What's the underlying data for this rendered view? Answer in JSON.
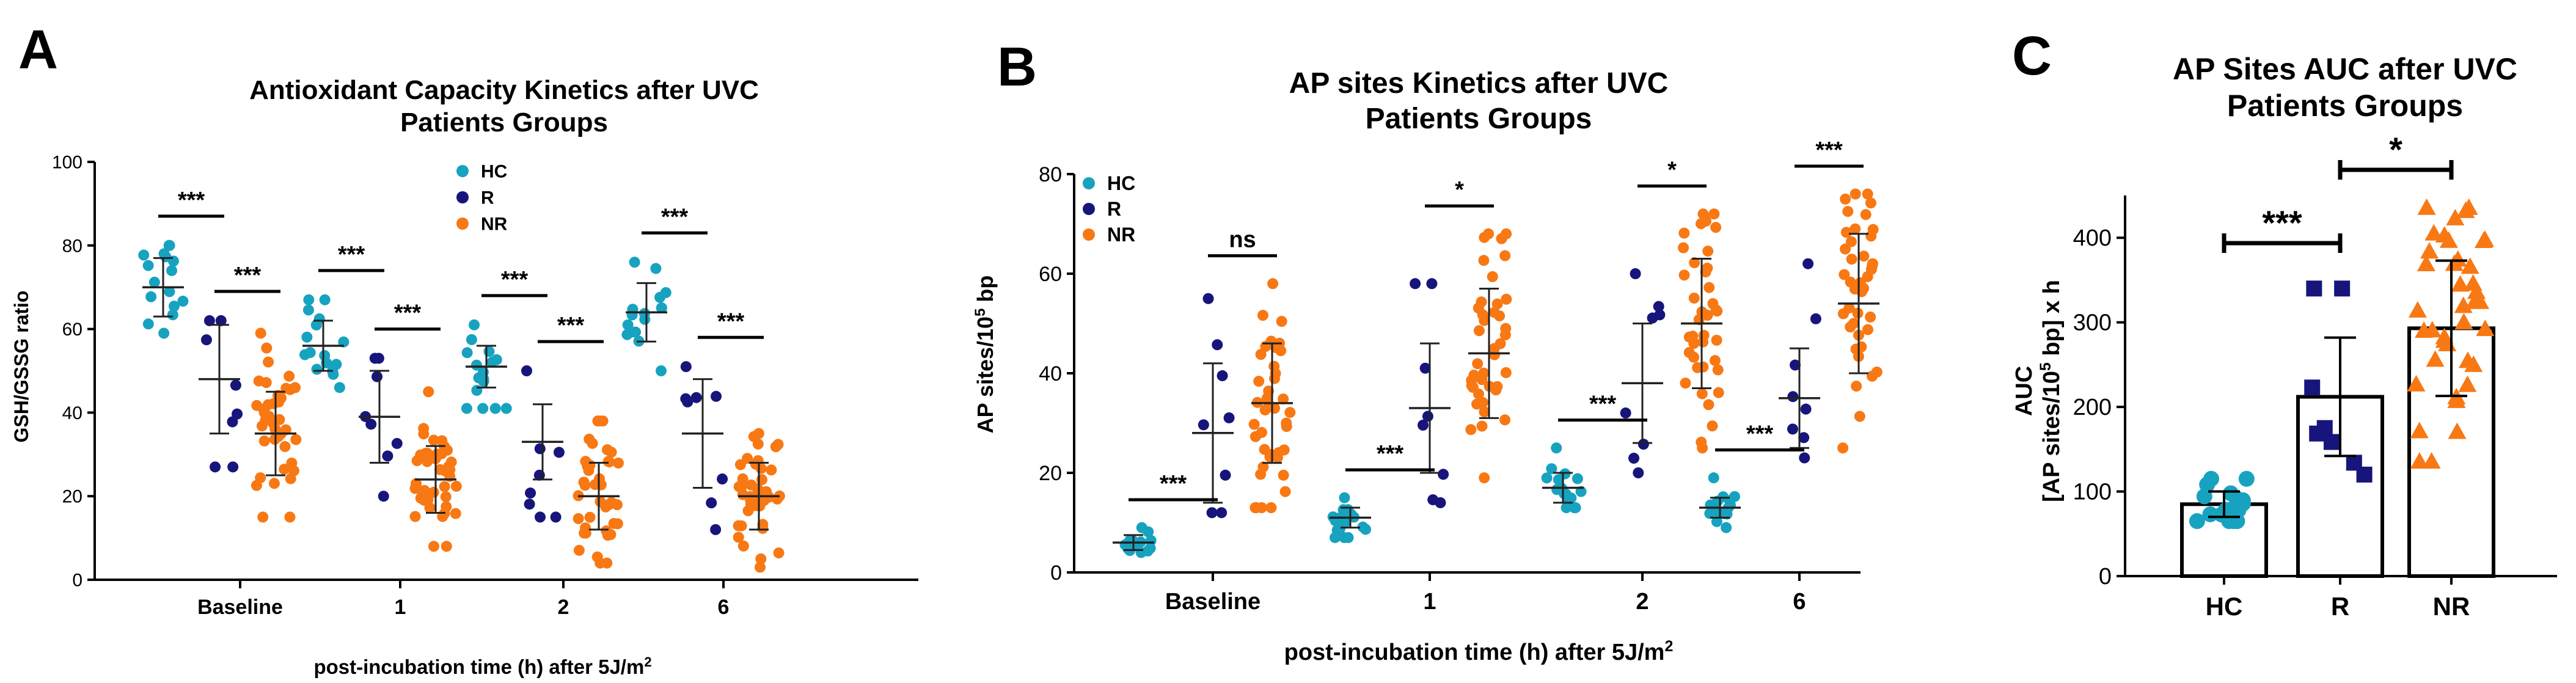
{
  "colors": {
    "HC": "#17a3bf",
    "R": "#17157c",
    "NR": "#f87814",
    "axis": "#000000"
  },
  "chart_data": [
    {
      "panel_label": "A",
      "type": "scatter",
      "title_line1": "Antioxidant Capacity Kinetics after UVC",
      "title_line2": "Patients Groups",
      "ylabel": "GSH/GSSG ratio",
      "xlabel_main": "post-incubation time (h) after 5J/m",
      "xlabel_sup": "2",
      "ylim": [
        0,
        100
      ],
      "yticks": [
        0,
        20,
        40,
        60,
        80,
        100
      ],
      "categories": [
        "Baseline",
        "1",
        "2",
        "6"
      ],
      "legend": [
        "HC",
        "R",
        "NR"
      ],
      "series": [
        {
          "name": "HC",
          "n": 16,
          "mean": [
            70,
            56,
            51,
            64
          ],
          "sd": [
            7,
            6,
            5,
            7
          ],
          "range": [
            [
              59,
              80
            ],
            [
              46,
              67
            ],
            [
              41,
              61
            ],
            [
              50,
              76
            ]
          ]
        },
        {
          "name": "R",
          "n": 8,
          "mean": [
            48,
            39,
            33,
            35
          ],
          "sd": [
            13,
            11,
            9,
            13
          ],
          "range": [
            [
              27,
              62
            ],
            [
              20,
              53
            ],
            [
              15,
              50
            ],
            [
              12,
              51
            ]
          ]
        },
        {
          "name": "NR",
          "n": 40,
          "mean": [
            35,
            24,
            20,
            20
          ],
          "sd": [
            10,
            8,
            8,
            8
          ],
          "range": [
            [
              15,
              59
            ],
            [
              8,
              45
            ],
            [
              4,
              38
            ],
            [
              3,
              35
            ]
          ]
        }
      ],
      "brackets": [
        {
          "cat": 0,
          "from": "HC",
          "to": "R",
          "label": "***"
        },
        {
          "cat": 0,
          "from": "R",
          "to": "NR",
          "label": "***"
        },
        {
          "cat": 1,
          "from": "HC",
          "to": "R",
          "label": "***"
        },
        {
          "cat": 1,
          "from": "R",
          "to": "NR",
          "label": "***"
        },
        {
          "cat": 2,
          "from": "HC",
          "to": "R",
          "label": "***"
        },
        {
          "cat": 2,
          "from": "R",
          "to": "NR",
          "label": "***"
        },
        {
          "cat": 3,
          "from": "HC",
          "to": "R",
          "label": "***"
        },
        {
          "cat": 3,
          "from": "R",
          "to": "NR",
          "label": "***"
        }
      ]
    },
    {
      "panel_label": "B",
      "type": "scatter",
      "title_line1": "AP sites Kinetics after UVC",
      "title_line2": "Patients Groups",
      "ylabel_pre": "AP sites/10",
      "ylabel_sup": "5",
      "ylabel_post": " bp",
      "xlabel_main": "post-incubation time (h) after 5J/m",
      "xlabel_sup": "2",
      "ylim": [
        0,
        80
      ],
      "yticks": [
        0,
        20,
        40,
        60,
        80
      ],
      "categories": [
        "Baseline",
        "1",
        "2",
        "6"
      ],
      "legend": [
        "HC",
        "R",
        "NR"
      ],
      "series": [
        {
          "name": "HC",
          "n": 16,
          "mean": [
            6,
            11,
            17,
            13
          ],
          "sd": [
            1.5,
            2,
            3,
            2
          ],
          "range": [
            [
              4,
              9
            ],
            [
              7,
              15
            ],
            [
              13,
              25
            ],
            [
              9,
              19
            ]
          ]
        },
        {
          "name": "R",
          "n": 8,
          "mean": [
            28,
            33,
            38,
            35
          ],
          "sd": [
            14,
            13,
            12,
            10
          ],
          "range": [
            [
              12,
              55
            ],
            [
              14,
              58
            ],
            [
              20,
              60
            ],
            [
              23,
              62
            ]
          ]
        },
        {
          "name": "NR",
          "n": 40,
          "mean": [
            34,
            44,
            50,
            54
          ],
          "sd": [
            12,
            13,
            13,
            14
          ],
          "range": [
            [
              13,
              58
            ],
            [
              19,
              68
            ],
            [
              25,
              72
            ],
            [
              25,
              76
            ]
          ]
        }
      ],
      "brackets": [
        {
          "cat": 0,
          "from": "HC",
          "to": "R",
          "label": "***"
        },
        {
          "cat": 0,
          "from": "R",
          "to": "NR",
          "label": "ns"
        },
        {
          "cat": 1,
          "from": "HC",
          "to": "R",
          "label": "***"
        },
        {
          "cat": 1,
          "from": "R",
          "to": "NR",
          "label": "*"
        },
        {
          "cat": 2,
          "from": "HC",
          "to": "R",
          "label": "***"
        },
        {
          "cat": 2,
          "from": "R",
          "to": "NR",
          "label": "*"
        },
        {
          "cat": 3,
          "from": "HC",
          "to": "R",
          "label": "***"
        },
        {
          "cat": 3,
          "from": "R",
          "to": "NR",
          "label": "***"
        }
      ]
    },
    {
      "panel_label": "C",
      "type": "bar",
      "title_line1": "AP Sites AUC after UVC",
      "title_line2": "Patients Groups",
      "ylabel_line1": "AUC",
      "ylabel_line2_pre": "[AP sites/10",
      "ylabel_line2_sup": "5",
      "ylabel_line2_post": " bp] x h",
      "ylim": [
        0,
        450
      ],
      "yticks": [
        0,
        100,
        200,
        300,
        400
      ],
      "categories": [
        "HC",
        "R",
        "NR"
      ],
      "values": [
        85,
        212,
        293
      ],
      "sd": [
        15,
        70,
        80
      ],
      "n": [
        16,
        8,
        40
      ],
      "range": [
        [
          65,
          115
        ],
        [
          120,
          340
        ],
        [
          135,
          435
        ]
      ],
      "markers": [
        "circle",
        "square",
        "triangle"
      ],
      "brackets": [
        {
          "from": 0,
          "to": 1,
          "label": "***"
        },
        {
          "from": 1,
          "to": 2,
          "label": "*"
        }
      ]
    }
  ]
}
